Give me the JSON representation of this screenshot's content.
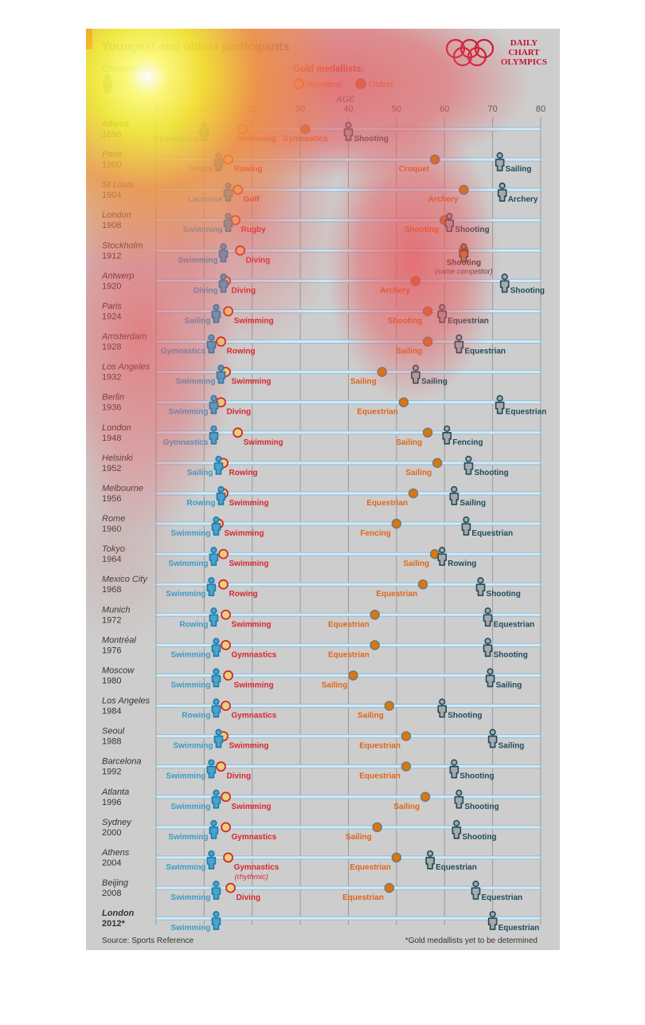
{
  "title": "Youngest and oldest participants",
  "logo": {
    "line1": "DAILY",
    "line2": "CHART",
    "line3": "OLYMPICS",
    "color": "#c8102e"
  },
  "legend": {
    "competitors_title": "Competitors:",
    "competitors_youngest": "Youngest",
    "competitors_oldest": "Oldest",
    "gold_title": "Gold medallists:",
    "gold_youngest": "Youngest",
    "gold_oldest": "Oldest"
  },
  "source": "Source: Sports Reference",
  "footnote": "*Gold medallists yet to be determined",
  "colors": {
    "competitor_youngest": "#3a9cc8",
    "competitor_oldest": "#1d4b5c",
    "gold_youngest": "#d8262e",
    "gold_oldest": "#e0651a"
  },
  "chart_data": {
    "type": "scatter",
    "xlabel": "AGE",
    "xlim": [
      0,
      80
    ],
    "xticks": [
      "0",
      "10",
      "20",
      "30",
      "40",
      "50",
      "60",
      "70",
      "80"
    ],
    "grid": true,
    "rows": [
      {
        "city": "Athens",
        "year": "1896",
        "cy": [
          10,
          "Gymnastics"
        ],
        "gy": [
          18,
          "Swimming"
        ],
        "go": [
          31,
          "Gymnastics"
        ],
        "co": [
          40,
          "Shooting"
        ]
      },
      {
        "city": "Paris",
        "year": "1900",
        "cy": [
          13,
          "Tennis"
        ],
        "gy": [
          15,
          "Rowing"
        ],
        "go": [
          58,
          "Croquet"
        ],
        "co": [
          71.5,
          "Sailing"
        ]
      },
      {
        "city": "St Louis",
        "year": "1904",
        "cy": [
          15,
          "Lacrosse"
        ],
        "gy": [
          17,
          "Golf"
        ],
        "go": [
          64,
          "Archery"
        ],
        "co": [
          72,
          "Archery"
        ]
      },
      {
        "city": "London",
        "year": "1908",
        "cy": [
          15,
          "Swimming"
        ],
        "gy": [
          16.5,
          "Rugby"
        ],
        "go": [
          60,
          "Shooting"
        ],
        "co": [
          61,
          "Shooting"
        ]
      },
      {
        "city": "Stockholm",
        "year": "1912",
        "cy": [
          14,
          "Swimming"
        ],
        "gy": [
          17.5,
          "Diving"
        ],
        "go": [
          64,
          "Shooting"
        ],
        "co": [
          64,
          "Shooting"
        ],
        "note": "(same competitor)"
      },
      {
        "city": "Antwerp",
        "year": "1920",
        "cy": [
          14,
          "Diving"
        ],
        "gy": [
          14.5,
          "Diving"
        ],
        "go": [
          54,
          "Archery"
        ],
        "co": [
          72.5,
          "Shooting"
        ]
      },
      {
        "city": "Paris",
        "year": "1924",
        "cy": [
          12.5,
          "Sailing"
        ],
        "gy": [
          15,
          "Swimming"
        ],
        "go": [
          56.5,
          "Shooting"
        ],
        "co": [
          59.5,
          "Equestrian"
        ]
      },
      {
        "city": "Amsterdam",
        "year": "1928",
        "cy": [
          11.5,
          "Gymnastics"
        ],
        "gy": [
          13.5,
          "Rowing"
        ],
        "go": [
          56.5,
          "Sailing"
        ],
        "co": [
          63,
          "Equestrian"
        ]
      },
      {
        "city": "Los Angeles",
        "year": "1932",
        "cy": [
          13.5,
          "Swimming"
        ],
        "gy": [
          14.5,
          "Swimming"
        ],
        "go": [
          47,
          "Sailing"
        ],
        "co": [
          54,
          "Sailing"
        ]
      },
      {
        "city": "Berlin",
        "year": "1936",
        "cy": [
          12,
          "Swimming"
        ],
        "gy": [
          13.5,
          "Diving"
        ],
        "go": [
          51.5,
          "Equestrian"
        ],
        "co": [
          71.5,
          "Equestrian"
        ]
      },
      {
        "city": "London",
        "year": "1948",
        "cy": [
          12,
          "Gymnastics"
        ],
        "gy": [
          17,
          "Swimming"
        ],
        "go": [
          56.5,
          "Sailing"
        ],
        "co": [
          60.5,
          "Fencing"
        ]
      },
      {
        "city": "Helsinki",
        "year": "1952",
        "cy": [
          13,
          "Sailing"
        ],
        "gy": [
          14,
          "Rowing"
        ],
        "go": [
          58.5,
          "Sailing"
        ],
        "co": [
          65,
          "Shooting"
        ]
      },
      {
        "city": "Melbourne",
        "year": "1956",
        "cy": [
          13.5,
          "Rowing"
        ],
        "gy": [
          14,
          "Swimming"
        ],
        "go": [
          53.5,
          "Equestrian"
        ],
        "co": [
          62,
          "Sailing"
        ]
      },
      {
        "city": "Rome",
        "year": "1960",
        "cy": [
          12.5,
          "Swimming"
        ],
        "gy": [
          13,
          "Swimming"
        ],
        "go": [
          50,
          "Fencing"
        ],
        "co": [
          64.5,
          "Equestrian"
        ]
      },
      {
        "city": "Tokyo",
        "year": "1964",
        "cy": [
          12,
          "Swimming"
        ],
        "gy": [
          14,
          "Swimming"
        ],
        "go": [
          58,
          "Sailing"
        ],
        "co": [
          59.5,
          "Rowing"
        ]
      },
      {
        "city": "Mexico City",
        "year": "1968",
        "cy": [
          11.5,
          "Swimming"
        ],
        "gy": [
          14,
          "Rowing"
        ],
        "go": [
          55.5,
          "Equestrian"
        ],
        "co": [
          67.5,
          "Shooting"
        ]
      },
      {
        "city": "Munich",
        "year": "1972",
        "cy": [
          12,
          "Rowing"
        ],
        "gy": [
          14.5,
          "Swimming"
        ],
        "go": [
          45.5,
          "Equestrian"
        ],
        "co": [
          69,
          "Equestrian"
        ]
      },
      {
        "city": "Montréal",
        "year": "1976",
        "cy": [
          12.5,
          "Swimming"
        ],
        "gy": [
          14.5,
          "Gymnastics"
        ],
        "go": [
          45.5,
          "Equestrian"
        ],
        "co": [
          69,
          "Shooting"
        ]
      },
      {
        "city": "Moscow",
        "year": "1980",
        "cy": [
          12.5,
          "Swimming"
        ],
        "gy": [
          15,
          "Swimming"
        ],
        "go": [
          41,
          "Sailing"
        ],
        "co": [
          69.5,
          "Sailing"
        ]
      },
      {
        "city": "Los Angeles",
        "year": "1984",
        "cy": [
          12.5,
          "Rowing"
        ],
        "gy": [
          14.5,
          "Gymnastics"
        ],
        "go": [
          48.5,
          "Sailing"
        ],
        "co": [
          59.5,
          "Shooting"
        ]
      },
      {
        "city": "Seoul",
        "year": "1988",
        "cy": [
          13,
          "Swimming"
        ],
        "gy": [
          14,
          "Swimming"
        ],
        "go": [
          52,
          "Equestrian"
        ],
        "co": [
          70,
          "Sailing"
        ]
      },
      {
        "city": "Barcelona",
        "year": "1992",
        "cy": [
          11.5,
          "Swimming"
        ],
        "gy": [
          13.5,
          "Diving"
        ],
        "go": [
          52,
          "Equestrian"
        ],
        "co": [
          62,
          "Shooting"
        ]
      },
      {
        "city": "Atlanta",
        "year": "1996",
        "cy": [
          12.5,
          "Swimming"
        ],
        "gy": [
          14.5,
          "Swimming"
        ],
        "go": [
          56,
          "Sailing"
        ],
        "co": [
          63,
          "Shooting"
        ]
      },
      {
        "city": "Sydney",
        "year": "2000",
        "cy": [
          12,
          "Swimming"
        ],
        "gy": [
          14.5,
          "Gymnastics"
        ],
        "go": [
          46,
          "Sailing"
        ],
        "co": [
          62.5,
          "Shooting"
        ]
      },
      {
        "city": "Athens",
        "year": "2004",
        "cy": [
          11.5,
          "Swimming"
        ],
        "gy": [
          15,
          "Gymnastics"
        ],
        "go": [
          50,
          "Equestrian"
        ],
        "co": [
          57,
          "Equestrian"
        ],
        "gy_note": "(rhythmic)"
      },
      {
        "city": "Beijing",
        "year": "2008",
        "cy": [
          12.5,
          "Swimming"
        ],
        "gy": [
          15.5,
          "Diving"
        ],
        "go": [
          48.5,
          "Equestrian"
        ],
        "co": [
          66.5,
          "Equestrian"
        ]
      },
      {
        "city": "London",
        "year": "2012*",
        "cy": [
          12.5,
          "Swimming"
        ],
        "co": [
          70,
          "Equestrian"
        ]
      }
    ]
  }
}
